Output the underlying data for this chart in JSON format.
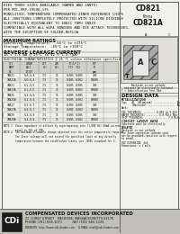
{
  "title_top": "CD821",
  "title_sub": "thru",
  "title_model": "CD821A",
  "header_lines": [
    "DIES THREE SIZES AVAILABLE (NAMED AND JANTX)",
    "PER MIL-PRF-19500-135",
    "MONOLITHIC TEMPERATURE COMPENSATED ZENER REFERENCE CHIPS",
    "ALL JUNCTIONS COMPLETELY PROTECTED WITH SILICON DIOXIDES",
    "ELECTRICALLY EQUIVALENT TO 1N821 THRU 1N829",
    "COMPATIBLE WITH ALL WIRE BONDING AND DIE ATTACH TECHNIQUES,",
    "WITH THE EXCEPTION OF SOLDER-REFLOW"
  ],
  "max_ratings_title": "MAXIMUM RATINGS",
  "max_ratings": [
    "Operating Temperature:  -55°C to +175°C",
    "Storage Temperature:  -65°C to +150°C"
  ],
  "reverse_title": "REVERSE LEAKAGE CURRENT",
  "reverse_text": "IR = 1.5 mA @ 25°C to VZ = 1.5 (μA)",
  "elec_char_title": "ELECTRICAL CHARACTERISTICS @ 25 °C unless otherwise specified",
  "col_headers": [
    "CDI\nPART\nNUMBER",
    "ZENER\nVOLTAGE\nVZ (V)\nαVZ/αT",
    "ZENER\nIMPED\nZZT\nTest 11",
    "MAXIMUM\nZENER\nIMPEDANCE\nZZK\nTest 11",
    "TC (%/°C)\nTEST 11   TEST 12",
    "EFFECTIVE\nTC\n(PPM/°C)"
  ],
  "row_data": [
    [
      "1N821",
      "6.0-6.4",
      "7.5",
      "15",
      "0.005",
      "0.005",
      "100"
    ],
    [
      "1N821A",
      "6.0-6.4",
      "7.5",
      "15",
      "0.005",
      "0.002",
      "50000"
    ],
    [
      "1N823",
      "6.1-6.5",
      "7.5",
      "15",
      "0.005",
      "0.005",
      "100"
    ],
    [
      "1N823A",
      "6.1-6.5",
      "7.5",
      "15",
      "0.005",
      "0.002",
      "50000"
    ],
    [
      "1N825",
      "6.2-6.6",
      "7.5",
      "15",
      "0.005",
      "0.005",
      "100"
    ],
    [
      "1N825A",
      "6.2-6.6",
      "7.5",
      "15",
      "0.005",
      "0.002",
      "50000"
    ],
    [
      "1N827",
      "6.3-6.7",
      "7.5",
      "15",
      "0.005",
      "0.005",
      "100"
    ],
    [
      "1N827A",
      "6.3-6.7",
      "7.5",
      "15",
      "0.005",
      "0.002",
      "50000"
    ],
    [
      "1N829",
      "6.4-6.8",
      "7.5",
      "15",
      "0.005",
      "0.005",
      "100"
    ],
    [
      "1N829A",
      "6.4-6.8",
      "7.5",
      "15",
      "0.005",
      "0.002",
      "50000"
    ]
  ],
  "note1": "NOTE 1  Zener impedance is defined by superimposing into (1,000 Hz) 60mA current equal to 10% of IPK.",
  "note2": "NOTE 2  The maximum allowable change observed over the entire temperature range on The Zener voltage will not exceed the specified limit at any directly temperature between the established limits, per JEDEC standard for S.",
  "design_data_title": "DESIGN DATA",
  "metallization_title": "METALLIZATION",
  "metallization_lines": [
    "Top:   Al  (Aluminum) ............... Au",
    "       (Backside) ................... Au",
    "Back:"
  ],
  "thickness_lines": [
    "DIE THICKNESS: ........ 0.009 to 0.013",
    "WAFER THICKNESS: ........ 6.0 Mils Max",
    "CHIP THICKNESS: ............... 7.0 Mils"
  ],
  "circuit_layout_title": "CIRCUIT LAYOUT DATA",
  "circuit_layout_lines": [
    "Substrate must be electrically",
    "ISOLATED",
    "Backside is not cathode",
    "For Zener-operation cathode need",
    "not be grounded; positive with respect",
    "to anode."
  ],
  "die_dimension": "DIE DIMENSION: 4x4",
  "dim_tolerance": "Dimensions: ± 2 mils",
  "company_name": "COMPENSATED DEVICES INCORPORATED",
  "company_address": "22 COREY STREET   MELROSE, MASSACHUSETTS 02176",
  "company_phone": "PHONE (781) 665-1071          FAX (781) 665-1225",
  "company_web": "WEBSITE: http://www.cdi-diodes.com    E-MAIL: mail@cdi-diodes.com",
  "bg_color": "#f2f2ec",
  "text_color": "#111111",
  "border_color": "#444444",
  "table_line_color": "#777777",
  "bar_color": "#c8c8c0",
  "diagram_hatch_color": "#999999",
  "company_bar_color": "#c0c0b8"
}
